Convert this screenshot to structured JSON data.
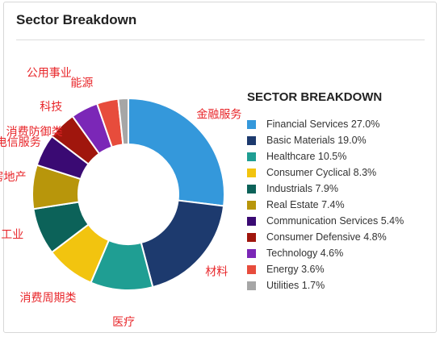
{
  "header": {
    "title": "Sector Breakdown"
  },
  "chart_data": {
    "type": "pie",
    "title": "SECTOR BREAKDOWN",
    "legend_position": "right",
    "categories": [
      "Financial Services",
      "Basic Materials",
      "Healthcare",
      "Consumer Cyclical",
      "Industrials",
      "Real Estate",
      "Communication Services",
      "Consumer Defensive",
      "Technology",
      "Energy",
      "Utilities"
    ],
    "values": [
      27.0,
      19.0,
      10.5,
      8.3,
      7.9,
      7.4,
      5.4,
      4.8,
      4.6,
      3.6,
      1.7
    ],
    "legend_labels": [
      "Financial Services 27.0%",
      "Basic Materials 19.0%",
      "Healthcare 10.5%",
      "Consumer Cyclical 8.3%",
      "Industrials 7.9%",
      "Real Estate 7.4%",
      "Communication Services 5.4%",
      "Consumer Defensive 4.8%",
      "Technology 4.6%",
      "Energy 3.6%",
      "Utilities 1.7%"
    ],
    "annotations": [
      "金融服务",
      "材料",
      "医疗",
      "消费周期类",
      "工业",
      "房地产",
      "电信服务",
      "消费防御类",
      "科技",
      "能源",
      "公用事业"
    ],
    "colors": [
      "#3498db",
      "#1d3a6e",
      "#1f9e93",
      "#f2c40f",
      "#0c6259",
      "#b8960b",
      "#3a0a73",
      "#a0160d",
      "#7b27b7",
      "#e74c3c",
      "#a6a6a6"
    ]
  }
}
